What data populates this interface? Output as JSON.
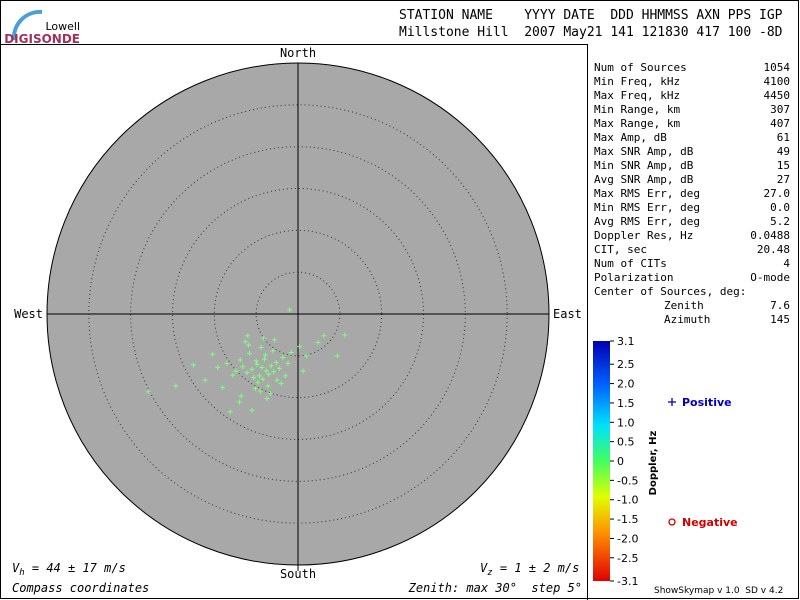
{
  "logo": {
    "top": "Lowell",
    "bottom": "DIGISONDE"
  },
  "header": {
    "line1": "STATION NAME    YYYY DATE  DDD HHMMSS AXN PPS IGP",
    "line2": "Millstone Hill  2007 May21 141 121830 417 100 -8D"
  },
  "stats": [
    [
      "Num of Sources",
      "1054"
    ],
    [
      "Min Freq, kHz",
      "4100"
    ],
    [
      "Max Freq, kHz",
      "4450"
    ],
    [
      "Min Range, km",
      "307"
    ],
    [
      "Max Range, km",
      "407"
    ],
    [
      "Max Amp, dB",
      "61"
    ],
    [
      "Max SNR Amp, dB",
      "49"
    ],
    [
      "Min SNR Amp, dB",
      "15"
    ],
    [
      "Avg SNR Amp, dB",
      "27"
    ],
    [
      "Max RMS Err, deg",
      "27.0"
    ],
    [
      "Min RMS Err, deg",
      "0.0"
    ],
    [
      "Avg RMS Err, deg",
      "5.2"
    ],
    [
      "Doppler Res, Hz",
      "0.0488"
    ],
    [
      "CIT, sec",
      "20.48"
    ],
    [
      "Num of CITs",
      "4"
    ],
    [
      "Polarization",
      "O-mode"
    ],
    [
      "Center of Sources, deg:",
      ""
    ],
    [
      "Zenith",
      "7.6"
    ],
    [
      "Azimuth",
      "145"
    ]
  ],
  "footer": {
    "vh_symbol": "V",
    "vh_sub": "h",
    "vh_text": " = 44 ± 17 m/s",
    "vz_symbol": "V",
    "vz_sub": "z",
    "vz_text": " = 1 ± 2 m/s",
    "coords": "Compass coordinates",
    "zenith": "Zenith: max 30°  step 5°",
    "version": "ShowSkymap v 1.0  SD v 4.2"
  },
  "chart_data": {
    "type": "polar-scatter",
    "compass": {
      "north": "North",
      "east": "East",
      "south": "South",
      "west": "West"
    },
    "xlim": [
      -30,
      30
    ],
    "ylim": [
      -30,
      30
    ],
    "rticks": [
      5,
      10,
      15,
      20,
      25,
      30
    ],
    "plot_color": "#a8a8a8",
    "point_color": "#7fff7f",
    "series": [
      {
        "name": "Positive",
        "color": "#0000c0",
        "x": [
          -4.3,
          -3.8,
          -4.9,
          -5.5,
          -3.2,
          -2.6,
          -6.1,
          -4.0,
          -4.6,
          -3.5,
          -5.0,
          -2.9,
          -6.6,
          -4.2,
          -3.9,
          -5.3,
          -2.2,
          -1.8,
          -6.9,
          -7.4,
          -3.0,
          -4.8,
          -5.8,
          -3.6,
          -2.5,
          -4.4,
          -5.1,
          -1.2,
          -0.8,
          -7.8,
          -8.5,
          -9.6,
          -11.1,
          -12.5,
          -14.6,
          -17.9,
          -8.1,
          -5.5,
          -6.8,
          -3.3,
          -2.0,
          0.2,
          1.0,
          2.4,
          4.7,
          5.6,
          3.1,
          -1.0,
          -4.1,
          -6.3,
          -7.0,
          -9.0,
          -2.8,
          -3.7,
          -5.9,
          -4.5,
          -1.5,
          0.6,
          -10.2,
          -6.0
        ],
        "values": [
          -6.4,
          -6.8,
          -6.0,
          -6.6,
          -6.2,
          -5.8,
          -7.0,
          -5.4,
          -7.4,
          -7.2,
          -5.6,
          -6.9,
          -6.3,
          -7.8,
          -4.9,
          -7.6,
          -6.5,
          -5.2,
          -5.5,
          -6.8,
          -4.4,
          -8.2,
          -4.7,
          -8.6,
          -7.9,
          -4.0,
          -8.9,
          -5.9,
          -4.6,
          -7.3,
          -5.9,
          -6.4,
          -7.9,
          -6.1,
          -8.6,
          -9.3,
          -11.7,
          -11.5,
          -9.8,
          -9.5,
          -8.3,
          -3.9,
          -5.0,
          -3.4,
          -5.0,
          -2.5,
          -2.6,
          0.5,
          -2.9,
          -3.3,
          -10.5,
          -8.8,
          -3.1,
          -10.1,
          -3.7,
          -9.2,
          -7.4,
          -6.8,
          -4.8,
          -2.6
        ]
      },
      {
        "name": "Negative",
        "color": "#d00000",
        "x": [],
        "values": []
      }
    ],
    "colorbar": {
      "label": "Doppler, Hz",
      "lim": [
        -3.1,
        3.1
      ],
      "ticks": [
        3.1,
        2.5,
        {
          "value": 2,
          "label": "2.0"
        },
        1.5,
        {
          "value": 1,
          "label": "1.0"
        },
        0.5,
        0,
        -0.5,
        {
          "value": -1,
          "label": "-1.0"
        },
        -1.5,
        {
          "value": -2,
          "label": "-2.0"
        },
        -2.5,
        -3.1
      ]
    }
  }
}
